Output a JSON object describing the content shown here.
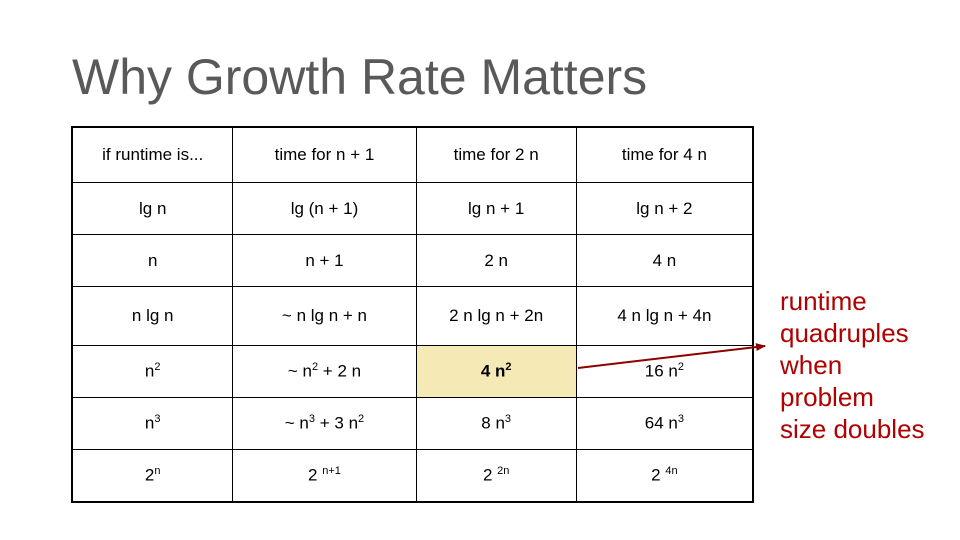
{
  "title": "Why Growth Rate Matters",
  "table": {
    "headers": [
      "if runtime is...",
      "time for n + 1",
      "time for 2 n",
      "time for 4 n"
    ],
    "rows": [
      [
        {
          "base": "lg n"
        },
        {
          "base": "lg (n + 1)"
        },
        {
          "base": "lg n + 1"
        },
        {
          "base": "lg n + 2"
        }
      ],
      [
        {
          "base": "n"
        },
        {
          "base": "n + 1"
        },
        {
          "base": "2 n"
        },
        {
          "base": "4 n"
        }
      ],
      [
        {
          "base": "n lg n"
        },
        {
          "base": "~ n lg n + n"
        },
        {
          "base": "2 n lg n + 2n"
        },
        {
          "base": "4 n lg n + 4n"
        }
      ],
      [
        {
          "base": "n",
          "sup": "2"
        },
        {
          "base": "~ n",
          "sup": "2",
          "tail": " + 2 n"
        },
        {
          "base": "4 n",
          "sup": "2"
        },
        {
          "base": "16 n",
          "sup": "2"
        }
      ],
      [
        {
          "base": "n",
          "sup": "3"
        },
        {
          "base": "~ n",
          "sup": "3",
          "tail": " + 3 n",
          "sup2": "2"
        },
        {
          "base": "8 n",
          "sup": "3"
        },
        {
          "base": "64 n",
          "sup": "3"
        }
      ],
      [
        {
          "base": "2",
          "sup": "n"
        },
        {
          "base": "2 ",
          "sup": "n+1"
        },
        {
          "base": "2 ",
          "sup": "2n"
        },
        {
          "base": "2 ",
          "sup": "4n"
        }
      ]
    ]
  },
  "annotation": {
    "lines": [
      "runtime",
      "quadruples",
      "when",
      "problem",
      "size doubles"
    ],
    "color": "#b00000"
  },
  "highlight_color": "#f5e9b6"
}
